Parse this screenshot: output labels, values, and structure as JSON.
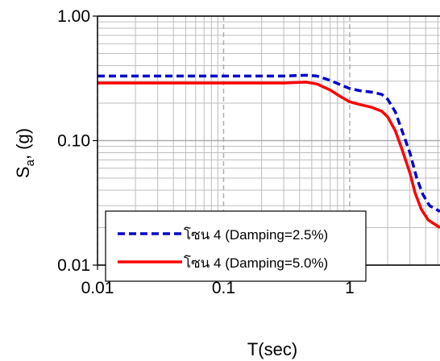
{
  "chart_data": {
    "type": "line",
    "title": "",
    "xlabel": "T(sec)",
    "ylabel_main": "S",
    "ylabel_sub": "a",
    "ylabel_rest": ", (g)",
    "x_scale": "log",
    "y_scale": "log",
    "xlim": [
      0.01,
      5.2
    ],
    "ylim": [
      0.01,
      1.0
    ],
    "x_ticks": [
      {
        "value": 0.01,
        "label": "0.01"
      },
      {
        "value": 0.1,
        "label": "0.1"
      },
      {
        "value": 1,
        "label": "1"
      }
    ],
    "y_ticks": [
      {
        "value": 0.01,
        "label": "0.01"
      },
      {
        "value": 0.1,
        "label": "0.10"
      },
      {
        "value": 1.0,
        "label": "1.00"
      }
    ],
    "grid": true,
    "legend_position": "lower-left",
    "series": [
      {
        "name": "โซน 4 (Damping=2.5%)",
        "color": "#0000cc",
        "style": "dashed",
        "points": [
          [
            0.01,
            0.33
          ],
          [
            0.1,
            0.33
          ],
          [
            0.3,
            0.33
          ],
          [
            0.45,
            0.335
          ],
          [
            0.55,
            0.33
          ],
          [
            0.7,
            0.305
          ],
          [
            0.85,
            0.28
          ],
          [
            1.0,
            0.262
          ],
          [
            1.2,
            0.252
          ],
          [
            1.5,
            0.245
          ],
          [
            1.8,
            0.235
          ],
          [
            2.0,
            0.215
          ],
          [
            2.3,
            0.17
          ],
          [
            2.6,
            0.12
          ],
          [
            3.0,
            0.08
          ],
          [
            3.4,
            0.05
          ],
          [
            3.8,
            0.037
          ],
          [
            4.3,
            0.03
          ],
          [
            5.2,
            0.027
          ]
        ]
      },
      {
        "name": "โซน 4 (Damping=5.0%)",
        "color": "#ff0000",
        "style": "solid",
        "points": [
          [
            0.01,
            0.29
          ],
          [
            0.1,
            0.29
          ],
          [
            0.3,
            0.29
          ],
          [
            0.45,
            0.295
          ],
          [
            0.55,
            0.285
          ],
          [
            0.7,
            0.255
          ],
          [
            0.85,
            0.225
          ],
          [
            1.0,
            0.205
          ],
          [
            1.2,
            0.195
          ],
          [
            1.5,
            0.185
          ],
          [
            1.8,
            0.172
          ],
          [
            2.0,
            0.155
          ],
          [
            2.3,
            0.12
          ],
          [
            2.6,
            0.085
          ],
          [
            3.0,
            0.055
          ],
          [
            3.3,
            0.038
          ],
          [
            3.7,
            0.028
          ],
          [
            4.2,
            0.023
          ],
          [
            5.2,
            0.02
          ]
        ]
      }
    ]
  }
}
